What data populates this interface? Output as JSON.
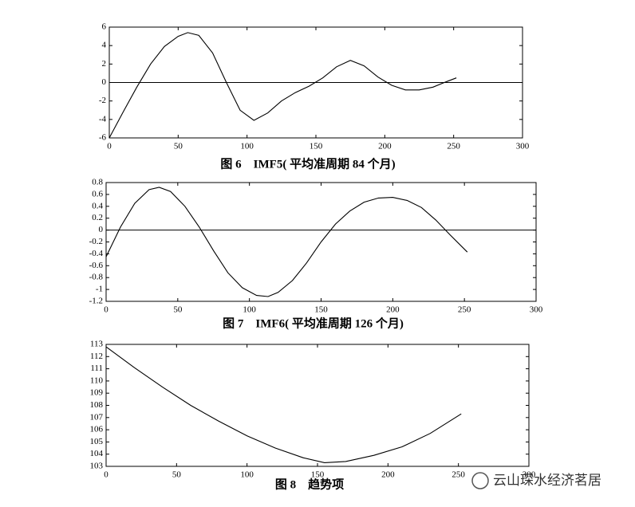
{
  "chart_data": [
    {
      "type": "line",
      "title": "图 6　IMF5( 平均准周期 84 个月)",
      "color": "#000000",
      "zero_line": true,
      "x": [
        0,
        10,
        20,
        30,
        40,
        50,
        57,
        65,
        75,
        85,
        95,
        105,
        115,
        125,
        135,
        145,
        155,
        165,
        175,
        185,
        195,
        205,
        215,
        225,
        235,
        245,
        252
      ],
      "values": [
        -6,
        -3.2,
        -0.5,
        2,
        3.9,
        5.0,
        5.4,
        5.1,
        3.2,
        0,
        -3,
        -4.1,
        -3.3,
        -2,
        -1.1,
        -0.4,
        0.5,
        1.7,
        2.4,
        1.8,
        0.6,
        -0.3,
        -0.8,
        -0.8,
        -0.5,
        0.1,
        0.5
      ],
      "xlim": [
        0,
        300
      ],
      "xticks": [
        0,
        50,
        100,
        150,
        200,
        250,
        300
      ],
      "ylim": [
        -6,
        6
      ],
      "yticks": [
        -6,
        -4,
        -2,
        0,
        2,
        4,
        6
      ]
    },
    {
      "type": "line",
      "title": "图 7　IMF6( 平均准周期 126 个月)",
      "color": "#000000",
      "zero_line": true,
      "x": [
        0,
        10,
        20,
        30,
        37,
        45,
        55,
        65,
        75,
        85,
        95,
        105,
        113,
        120,
        130,
        140,
        150,
        160,
        170,
        180,
        190,
        200,
        210,
        220,
        230,
        240,
        252
      ],
      "values": [
        -0.45,
        0.05,
        0.45,
        0.68,
        0.72,
        0.65,
        0.4,
        0.05,
        -0.35,
        -0.72,
        -0.97,
        -1.1,
        -1.12,
        -1.05,
        -0.85,
        -0.55,
        -0.2,
        0.1,
        0.32,
        0.47,
        0.54,
        0.55,
        0.5,
        0.38,
        0.17,
        -0.08,
        -0.37
      ],
      "xlim": [
        0,
        300
      ],
      "xticks": [
        0,
        50,
        100,
        150,
        200,
        250,
        300
      ],
      "ylim": [
        -1.2,
        0.8
      ],
      "yticks": [
        -1.2,
        -1,
        -0.8,
        -0.6,
        -0.4,
        -0.2,
        0,
        0.2,
        0.4,
        0.6,
        0.8
      ]
    },
    {
      "type": "line",
      "title": "图 8　趋势项",
      "color": "#000000",
      "zero_line": false,
      "x": [
        0,
        20,
        40,
        60,
        80,
        100,
        120,
        140,
        155,
        170,
        190,
        210,
        230,
        252
      ],
      "values": [
        112.8,
        111.1,
        109.5,
        108,
        106.7,
        105.5,
        104.5,
        103.7,
        103.3,
        103.4,
        103.9,
        104.6,
        105.7,
        107.3
      ],
      "xlim": [
        0,
        300
      ],
      "xticks": [
        0,
        50,
        100,
        150,
        200,
        250,
        300
      ],
      "ylim": [
        103,
        113
      ],
      "yticks": [
        103,
        104,
        105,
        106,
        107,
        108,
        109,
        110,
        111,
        112,
        113
      ]
    }
  ],
  "watermark": "云山琛水经济茗居"
}
